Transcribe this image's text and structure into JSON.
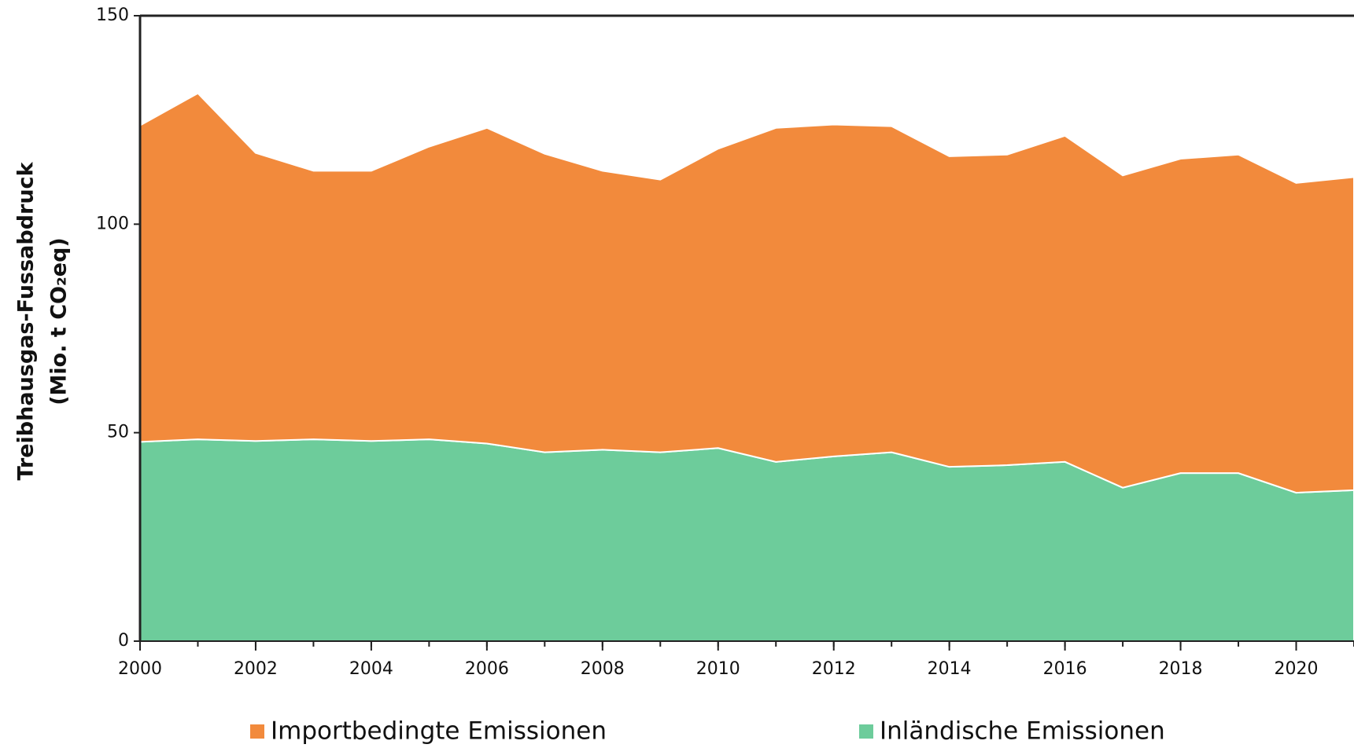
{
  "chart_data": {
    "type": "stacked_area",
    "y_label": [
      "Treibhausgas-Fussabdruck",
      "(Mio. t CO₂eq)"
    ],
    "x": [
      2000,
      2001,
      2002,
      2003,
      2004,
      2005,
      2006,
      2007,
      2008,
      2009,
      2010,
      2011,
      2012,
      2013,
      2014,
      2015,
      2016,
      2017,
      2018,
      2019,
      2020,
      2021
    ],
    "series": [
      {
        "name": "Importbedingte Emissionen",
        "color": "#f28a3c",
        "values": [
          75.9,
          83,
          69.1,
          64.4,
          64.8,
          70.2,
          75.7,
          71.6,
          66.9,
          65.4,
          71.8,
          80.1,
          79.6,
          78.2,
          74.5,
          74.5,
          78.2,
          74.9,
          75.4,
          76.4,
          74.3,
          75.1
        ]
      },
      {
        "name": "Inländische Emissionen",
        "color": "#6dcc9b",
        "values": [
          47.8,
          48.4,
          48,
          48.4,
          48,
          48.4,
          47.4,
          45.3,
          45.9,
          45.3,
          46.3,
          43,
          44.3,
          45.3,
          41.8,
          42.2,
          43,
          36.8,
          40.3,
          40.3,
          35.6,
          36.2
        ]
      }
    ],
    "xlim": [
      2000,
      2021
    ],
    "xticks": [
      2000,
      2002,
      2004,
      2006,
      2008,
      2010,
      2012,
      2014,
      2016,
      2018,
      2020
    ],
    "ylim": [
      0,
      150
    ],
    "yticks": [
      0,
      50,
      100,
      150
    ],
    "grid": false,
    "legend": "bottom"
  }
}
